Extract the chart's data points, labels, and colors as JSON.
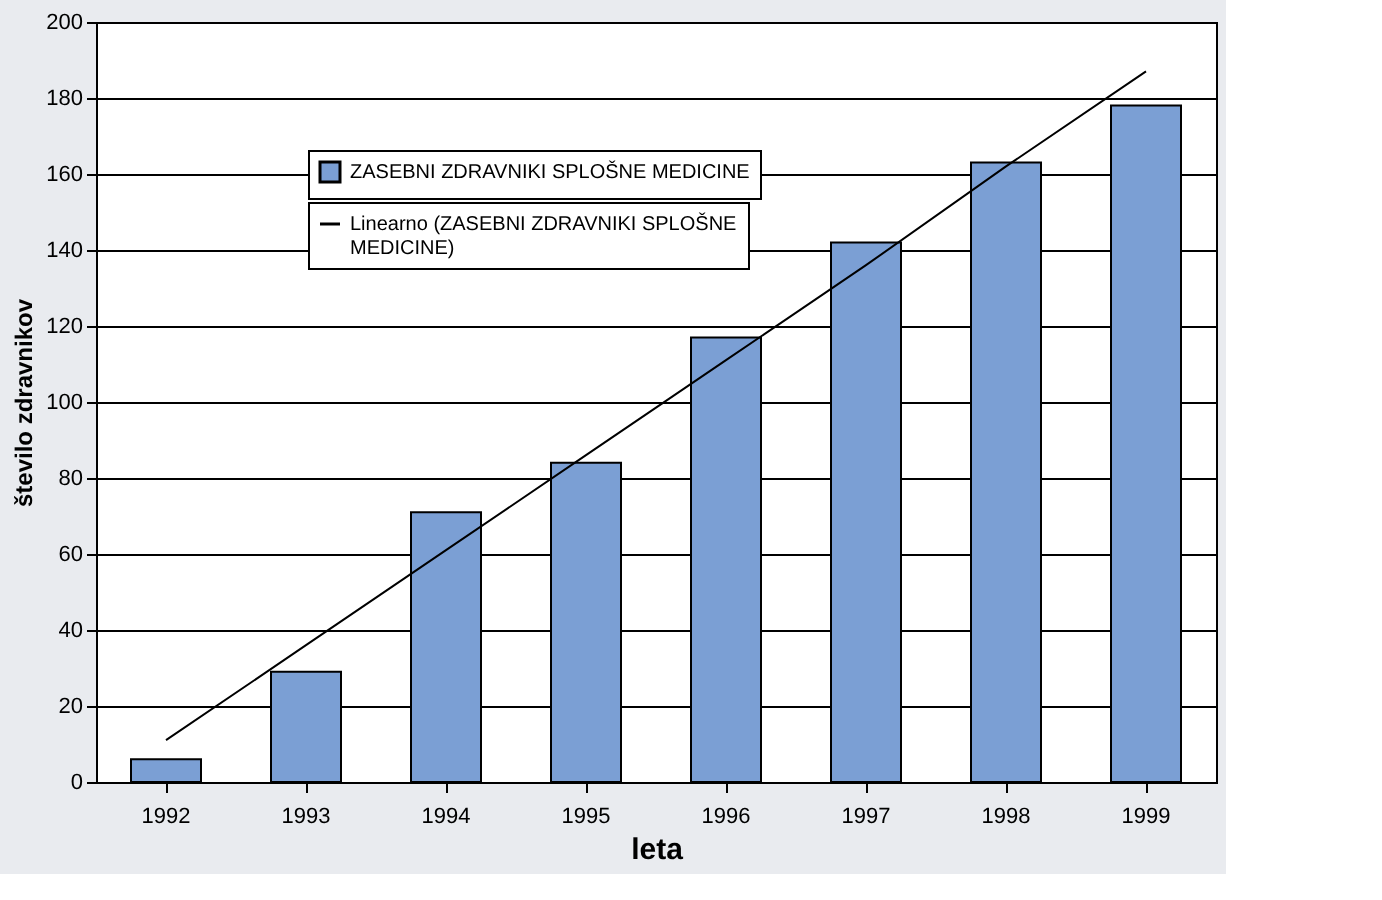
{
  "chart_data": {
    "type": "bar",
    "xlabel": "leta",
    "ylabel": "število zdravnikov",
    "categories": [
      "1992",
      "1993",
      "1994",
      "1995",
      "1996",
      "1997",
      "1998",
      "1999"
    ],
    "series": [
      {
        "name": "ZASEBNI ZDRAVNIKI SPLOŠNE MEDICINE",
        "color": "#7b9fd4",
        "values": [
          6,
          29,
          71,
          84,
          117,
          142,
          163,
          178
        ]
      },
      {
        "name": "Linearno (ZASEBNI ZDRAVNIKI SPLOŠNE MEDICINE)",
        "type": "line",
        "color": "#000000",
        "values": [
          11,
          36,
          61,
          86,
          111,
          136,
          162,
          187
        ]
      }
    ],
    "ylim": [
      0,
      200
    ],
    "yticks": [
      0,
      20,
      40,
      60,
      80,
      100,
      120,
      140,
      160,
      180,
      200
    ],
    "grid": "y",
    "legend": "top",
    "marker": "none",
    "line_style": "solid"
  }
}
